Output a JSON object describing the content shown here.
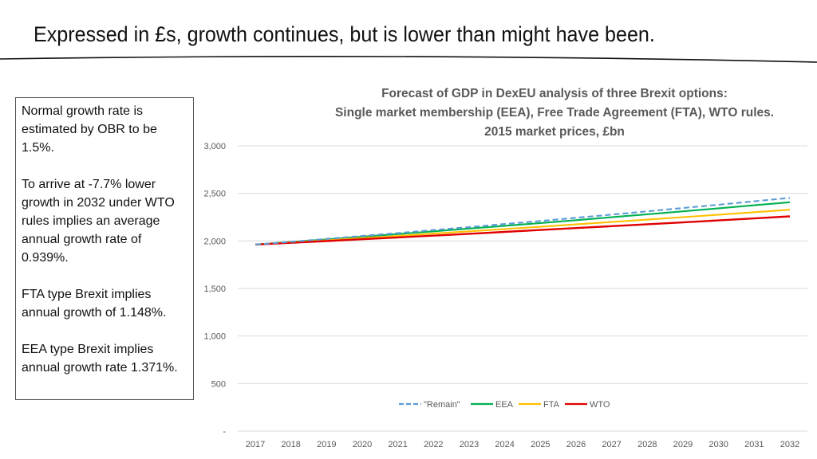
{
  "slide": {
    "title": "Expressed in £s, growth continues, but is lower than might have been."
  },
  "notes": [
    "Normal growth rate is estimated by OBR to be 1.5%.",
    "To arrive at -7.7% lower growth in 2032 under WTO rules implies an average annual growth rate of 0.939%.",
    "FTA type Brexit implies annual growth of 1.148%.",
    "EEA type Brexit implies annual growth rate 1.371%."
  ],
  "chart_data": {
    "type": "line",
    "title_lines": [
      "Forecast of GDP in DexEU analysis of three Brexit options:",
      "Single market membership (EEA), Free Trade Agreement (FTA), WTO rules.",
      "2015 market prices, £bn"
    ],
    "x": [
      2017,
      2018,
      2019,
      2020,
      2021,
      2022,
      2023,
      2024,
      2025,
      2026,
      2027,
      2028,
      2029,
      2030,
      2031,
      2032
    ],
    "x_tick_labels": [
      "2017",
      "2018",
      "2019",
      "2020",
      "2021",
      "2022",
      "2023",
      "2024",
      "2025",
      "2026",
      "2027",
      "2028",
      "2029",
      "2030",
      "2031",
      "2032"
    ],
    "y_tick_values": [
      0,
      500,
      1000,
      1500,
      2000,
      2500,
      3000
    ],
    "y_tick_labels": [
      "-",
      "500",
      "1,000",
      "1,500",
      "2,000",
      "2,500",
      "3,000"
    ],
    "ylim": [
      0,
      3000
    ],
    "grid": true,
    "legend_position": "bottom-center",
    "series": [
      {
        "name": "\"Remain\"",
        "key": "remain",
        "color": "#5b9bd5",
        "dashed": true,
        "values": [
          1962,
          1991,
          2021,
          2052,
          2082,
          2114,
          2145,
          2178,
          2210,
          2243,
          2277,
          2311,
          2346,
          2381,
          2417,
          2453
        ]
      },
      {
        "name": "EEA",
        "key": "eea",
        "color": "#00b050",
        "dashed": false,
        "values": [
          1962,
          1989,
          2016,
          2044,
          2072,
          2101,
          2130,
          2159,
          2188,
          2218,
          2249,
          2280,
          2311,
          2343,
          2375,
          2407
        ]
      },
      {
        "name": "FTA",
        "key": "fta",
        "color": "#ffc000",
        "dashed": false,
        "values": [
          1962,
          1985,
          2007,
          2030,
          2053,
          2077,
          2101,
          2125,
          2149,
          2174,
          2199,
          2224,
          2250,
          2276,
          2302,
          2328
        ]
      },
      {
        "name": "WTO",
        "key": "wto",
        "color": "#e00000",
        "dashed": false,
        "values": [
          1962,
          1980,
          1999,
          2018,
          2037,
          2056,
          2075,
          2095,
          2115,
          2135,
          2155,
          2175,
          2195,
          2216,
          2237,
          2258
        ]
      }
    ]
  }
}
